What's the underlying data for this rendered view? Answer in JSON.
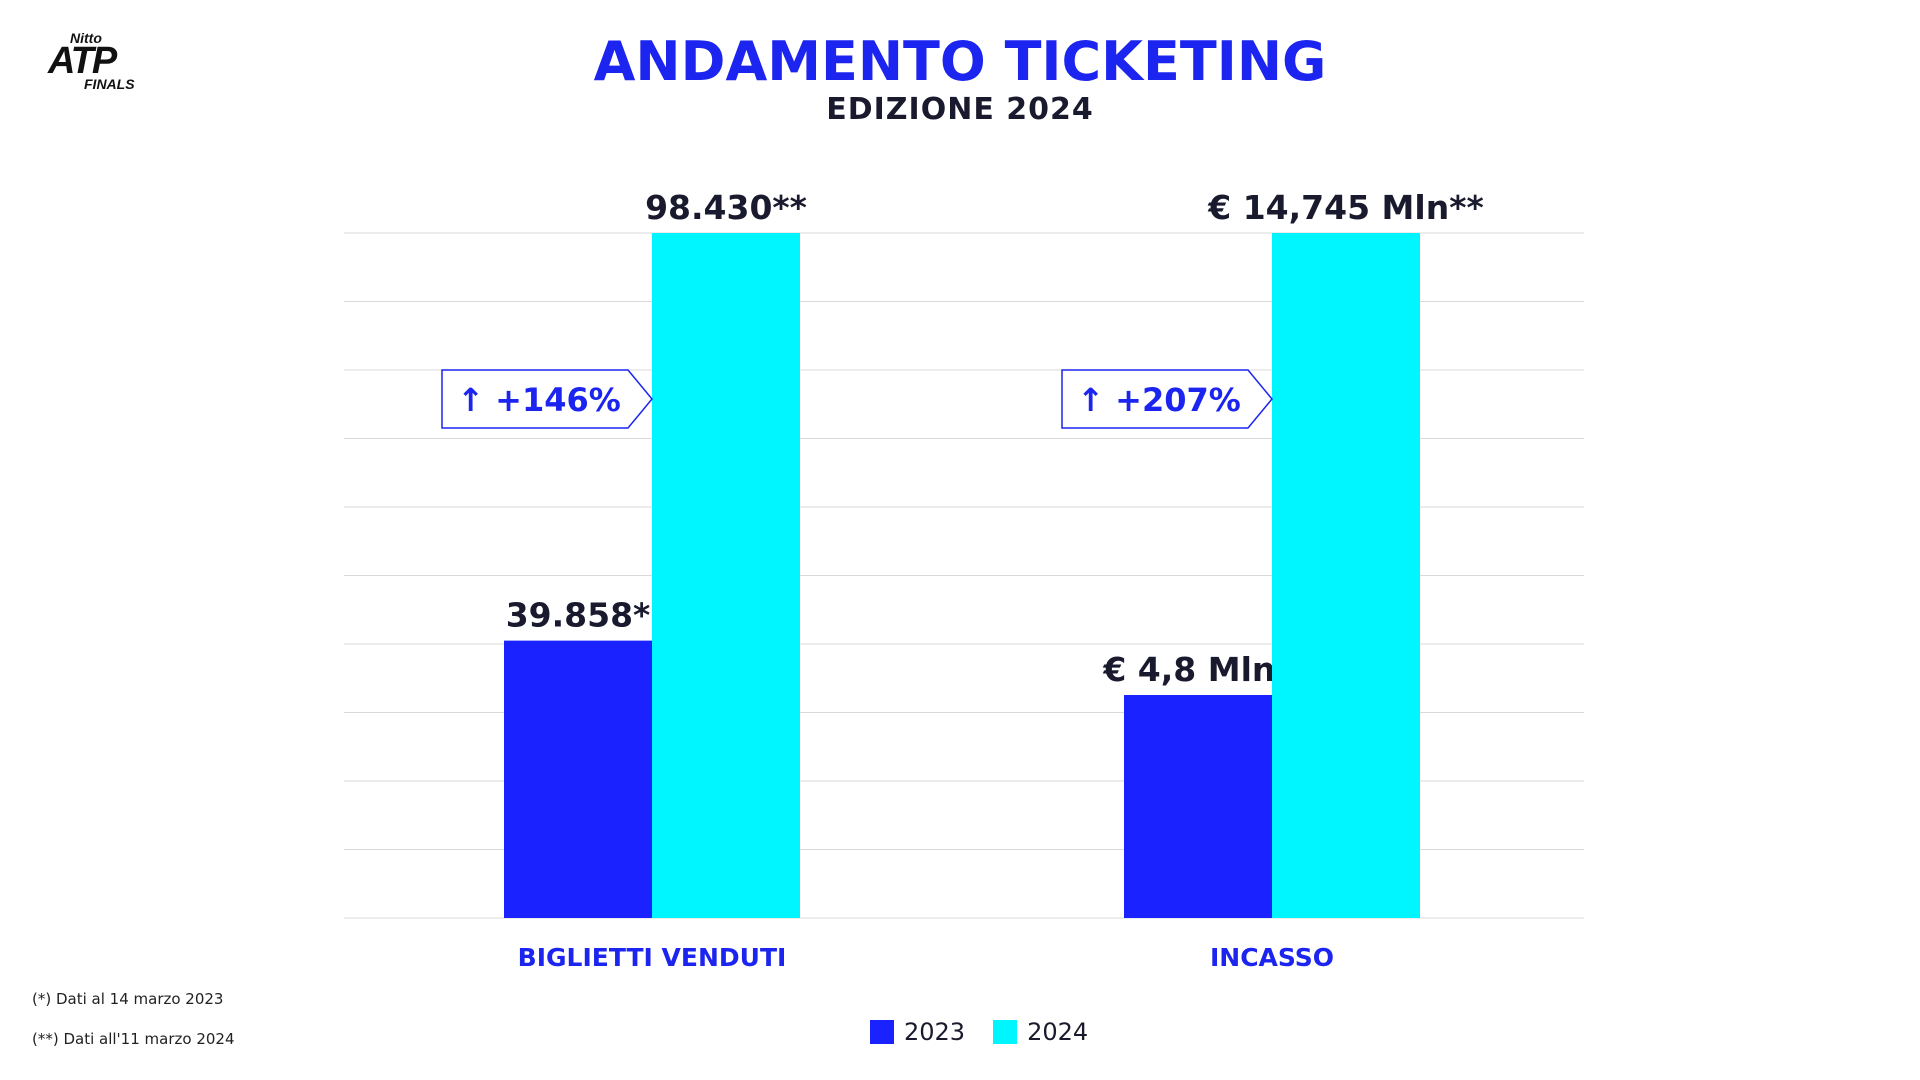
{
  "brand": {
    "top": "Nitto",
    "main": "ATP",
    "sub": "FINALS"
  },
  "header": {
    "title": "ANDAMENTO TICKETING",
    "subtitle": "EDIZIONE 2024"
  },
  "colors": {
    "accent": "#1c24f0",
    "series_2023": "#1a22ff",
    "series_2024": "#00f6ff",
    "grid": "#d9d9d9",
    "text": "#1a1a2e"
  },
  "chart_data": {
    "type": "bar",
    "categories": [
      "BIGLIETTI VENDUTI",
      "INCASSO"
    ],
    "series": [
      {
        "name": "2023",
        "values": [
          39858,
          4.8
        ],
        "labels": [
          "39.858*",
          "€ 4,8 Mln*"
        ]
      },
      {
        "name": "2024",
        "values": [
          98430,
          14.745
        ],
        "labels": [
          "98.430**",
          "€ 14,745 Mln**"
        ]
      }
    ],
    "growth": [
      "↑ +146%",
      "↑ +207%"
    ],
    "grid": true,
    "legend": "bottom-center"
  },
  "footnotes": [
    "(*) Dati al 14 marzo 2023",
    "(**) Dati all'11 marzo 2024"
  ]
}
